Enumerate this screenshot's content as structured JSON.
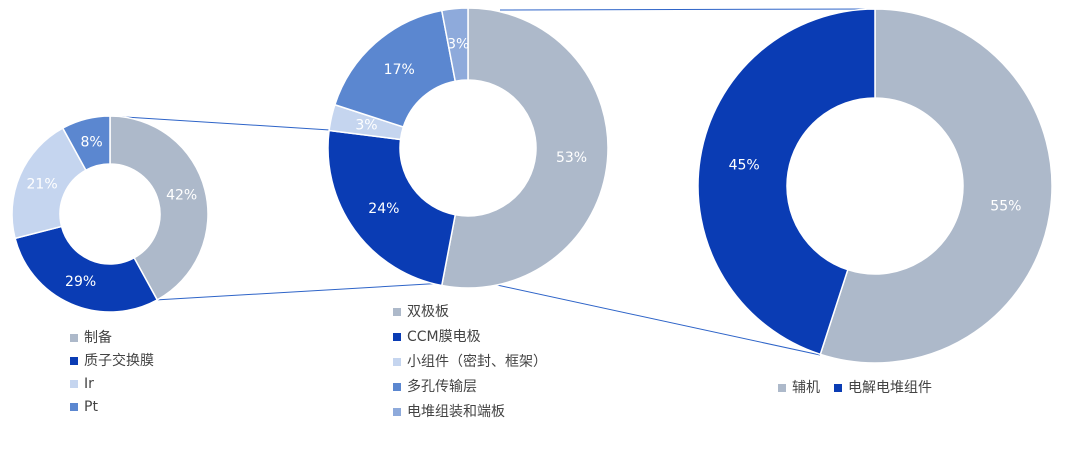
{
  "chart_data": [
    {
      "type": "pie",
      "categories": [
        "制备",
        "质子交换膜",
        "Ir",
        "Pt"
      ],
      "values": [
        42,
        29,
        21,
        8
      ],
      "value_labels": [
        "42%",
        "29%",
        "21%",
        "8%"
      ],
      "colors": [
        "#adb9ca",
        "#0a3cb4",
        "#c5d5ef",
        "#5b87d0"
      ]
    },
    {
      "type": "pie",
      "categories": [
        "双极板",
        "CCM膜电极",
        "小组件（密封、框架）",
        "多孔传输层",
        "电堆组装和端板"
      ],
      "values": [
        53,
        24,
        3,
        17,
        3
      ],
      "value_labels": [
        "53%",
        "24%",
        "3%",
        "17%",
        "3%"
      ],
      "colors": [
        "#adb9ca",
        "#0a3cb4",
        "#c5d5ef",
        "#5b87d0",
        "#8eaadb"
      ]
    },
    {
      "type": "pie",
      "categories": [
        "辅机",
        "电解电堆组件"
      ],
      "values": [
        55,
        45
      ],
      "value_labels": [
        "55%",
        "45%"
      ],
      "colors": [
        "#adb9ca",
        "#0a3cb4"
      ]
    }
  ]
}
